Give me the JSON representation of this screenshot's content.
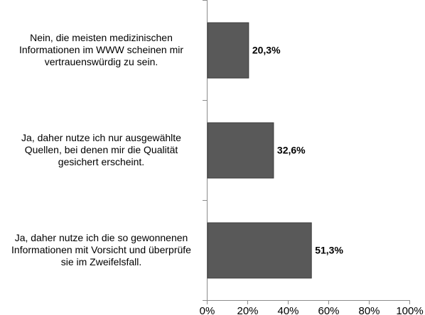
{
  "chart_data": {
    "type": "bar",
    "orientation": "horizontal",
    "categories": [
      "Nein, die meisten medizinischen Informationen im WWW scheinen mir vertrauenswürdig zu sein.",
      "Ja, daher nutze ich nur ausgewählte Quellen, bei denen mir die Qualität gesichert erscheint.",
      "Ja, daher nutze ich die so gewonnenen Informationen mit Vorsicht und überprüfe sie im Zweifelsfall."
    ],
    "category_lines": [
      [
        "Nein, die meisten medizinischen",
        "Informationen im WWW scheinen mir",
        "vertrauenswürdig zu sein."
      ],
      [
        "Ja, daher nutze ich nur ausgewählte",
        "Quellen, bei denen mir die Qualität",
        "gesichert erscheint."
      ],
      [
        "Ja, daher nutze ich die so gewonnenen",
        "Informationen mit Vorsicht und überprüfe",
        "sie im Zweifelsfall."
      ]
    ],
    "values": [
      20.3,
      32.6,
      51.3
    ],
    "value_labels": [
      "20,3%",
      "32,6%",
      "51,3%"
    ],
    "xlim": [
      0,
      100
    ],
    "xticks": [
      "0%",
      "20%",
      "40%",
      "60%",
      "80%",
      "100%"
    ],
    "bar_color": "#595959",
    "bar_edge_color": "#3a3a3a",
    "grid": false,
    "legend": "none"
  }
}
